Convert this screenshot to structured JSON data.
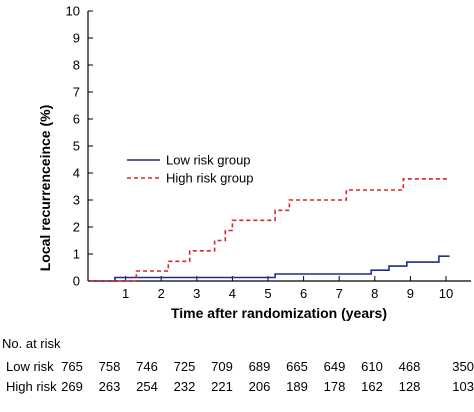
{
  "chart_data": {
    "type": "line",
    "title": "",
    "xlabel": "Time after randomization (years)",
    "ylabel": "Local recurrenceince (%)",
    "xlim": [
      0,
      10.2
    ],
    "ylim": [
      0,
      10
    ],
    "xticks": [
      1,
      2,
      3,
      4,
      5,
      6,
      7,
      8,
      9,
      10
    ],
    "yticks": [
      0,
      1,
      2,
      3,
      4,
      5,
      6,
      7,
      8,
      9,
      10
    ],
    "legend_position": "center-left",
    "series": [
      {
        "name": "Low risk group",
        "color": "#1f2d8c",
        "style": "solid",
        "points": [
          [
            0,
            0
          ],
          [
            0.7,
            0
          ],
          [
            0.7,
            0.13
          ],
          [
            1.2,
            0.13
          ],
          [
            1.2,
            0.13
          ],
          [
            5.2,
            0.13
          ],
          [
            5.2,
            0.26
          ],
          [
            7.9,
            0.26
          ],
          [
            7.9,
            0.4
          ],
          [
            8.4,
            0.4
          ],
          [
            8.4,
            0.55
          ],
          [
            8.9,
            0.55
          ],
          [
            8.9,
            0.7
          ],
          [
            9.8,
            0.7
          ],
          [
            9.8,
            0.92
          ],
          [
            10.1,
            0.92
          ]
        ]
      },
      {
        "name": "High risk group",
        "color": "#d9262b",
        "style": "dashed",
        "points": [
          [
            0,
            0
          ],
          [
            1.3,
            0
          ],
          [
            1.3,
            0.37
          ],
          [
            2.2,
            0.37
          ],
          [
            2.2,
            0.73
          ],
          [
            2.8,
            0.73
          ],
          [
            2.8,
            1.12
          ],
          [
            3.5,
            1.12
          ],
          [
            3.5,
            1.5
          ],
          [
            3.8,
            1.5
          ],
          [
            3.8,
            1.87
          ],
          [
            4.0,
            1.87
          ],
          [
            4.0,
            2.25
          ],
          [
            5.2,
            2.25
          ],
          [
            5.2,
            2.62
          ],
          [
            5.6,
            2.62
          ],
          [
            5.6,
            3.0
          ],
          [
            7.2,
            3.0
          ],
          [
            7.2,
            3.37
          ],
          [
            8.8,
            3.37
          ],
          [
            8.8,
            3.78
          ],
          [
            10.1,
            3.78
          ]
        ]
      }
    ]
  },
  "at_risk": {
    "header": "No. at risk",
    "rows": [
      {
        "label": "Low risk",
        "values": [
          "765",
          "758",
          "746",
          "725",
          "709",
          "689",
          "665",
          "649",
          "610",
          "468",
          "350"
        ]
      },
      {
        "label": "High risk",
        "values": [
          "269",
          "263",
          "254",
          "232",
          "221",
          "206",
          "189",
          "178",
          "162",
          "128",
          "103"
        ]
      }
    ]
  }
}
